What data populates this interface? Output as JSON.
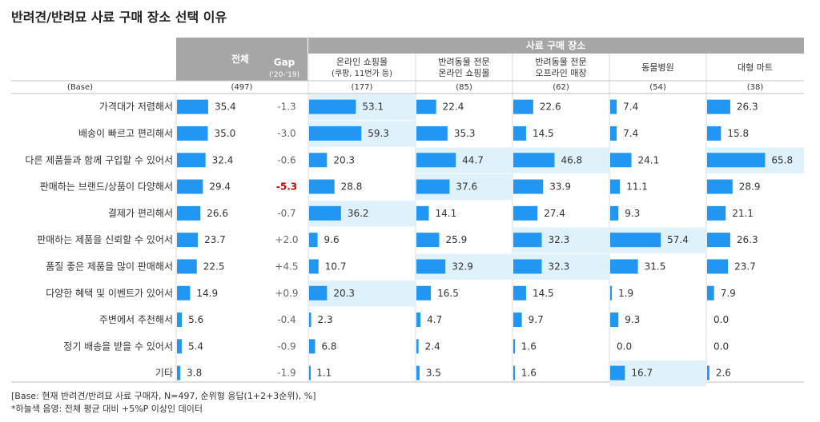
{
  "title": "반려견/반려묘 사료 구매 장소 선택 이유",
  "group_header": "사료 구매 장소",
  "base_label": "(Base)",
  "total_header": "전체",
  "gap_header": "Gap",
  "gap_sub": "('20-'19)",
  "columns": [
    {
      "name": "온라인 쇼핑몰",
      "sub": "(쿠팡, 11번가 등)",
      "base": "(177)"
    },
    {
      "name": "반려동물 전문",
      "sub": "온라인 쇼핑몰",
      "base": "(85)"
    },
    {
      "name": "반려동물 전문",
      "sub": "오프라인 매장",
      "base": "(62)"
    },
    {
      "name": "동물병원",
      "sub": "",
      "base": "(54)"
    },
    {
      "name": "대형 마트",
      "sub": "",
      "base": "(38)"
    }
  ],
  "total_base": "(497)",
  "notes": [
    "[Base: 현재 반려견/반려묘 사료 구매자, N=497, 순위형 응답(1+2+3순위), %]",
    "*하늘색 음영: 전체 평균 대비 +5%P 이상인 데이터"
  ],
  "colors": {
    "bar": "#2196f3",
    "highlight": "#dff1fb",
    "header_gray": "#a6a6a6",
    "gap_red": "#cc0000"
  },
  "chart_data": {
    "type": "bar",
    "title": "반려견/반려묘 사료 구매 장소 선택 이유",
    "categories": [
      "가격대가 저렴해서",
      "배송이 빠르고 편리해서",
      "다른 제품들과 함께 구입할 수 있어서",
      "판매하는 브랜드/상품이 다양해서",
      "결제가 편리해서",
      "판매하는 제품을 신뢰할 수 있어서",
      "품질 좋은 제품을 많이 판매해서",
      "다양한 혜택 및 이벤트가 있어서",
      "주변에서 추천해서",
      "정기 배송을 받을 수 있어서",
      "기타"
    ],
    "total": {
      "name": "전체",
      "values": [
        35.4,
        35.0,
        32.4,
        29.4,
        26.6,
        23.7,
        22.5,
        14.9,
        5.6,
        5.4,
        3.8
      ]
    },
    "gap": {
      "name": "Gap ('20-'19)",
      "values": [
        "-1.3",
        "-3.0",
        "-0.6",
        "-5.3",
        "-0.7",
        "+2.0",
        "+4.5",
        "+0.9",
        "-0.4",
        "-0.9",
        "-1.9"
      ],
      "emphasis_index": 3
    },
    "series": [
      {
        "name": "온라인 쇼핑몰",
        "values": [
          53.1,
          59.3,
          20.3,
          28.8,
          36.2,
          9.6,
          10.7,
          20.3,
          2.3,
          6.8,
          1.1
        ],
        "highlight": [
          true,
          true,
          false,
          false,
          true,
          false,
          false,
          true,
          false,
          false,
          false
        ]
      },
      {
        "name": "반려동물 전문 온라인 쇼핑몰",
        "values": [
          22.4,
          35.3,
          44.7,
          37.6,
          14.1,
          25.9,
          32.9,
          16.5,
          4.7,
          2.4,
          3.5
        ],
        "highlight": [
          false,
          false,
          true,
          true,
          false,
          false,
          true,
          false,
          false,
          false,
          false
        ]
      },
      {
        "name": "반려동물 전문 오프라인 매장",
        "values": [
          22.6,
          14.5,
          46.8,
          33.9,
          27.4,
          32.3,
          32.3,
          14.5,
          9.7,
          1.6,
          1.6
        ],
        "highlight": [
          false,
          false,
          true,
          false,
          false,
          true,
          true,
          false,
          false,
          false,
          false
        ]
      },
      {
        "name": "동물병원",
        "values": [
          7.4,
          7.4,
          24.1,
          11.1,
          9.3,
          57.4,
          31.5,
          1.9,
          9.3,
          0.0,
          16.7
        ],
        "highlight": [
          false,
          false,
          false,
          false,
          false,
          true,
          false,
          false,
          false,
          false,
          true
        ]
      },
      {
        "name": "대형 마트",
        "values": [
          26.3,
          15.8,
          65.8,
          28.9,
          21.1,
          26.3,
          23.7,
          7.9,
          0.0,
          0.0,
          2.6
        ],
        "highlight": [
          false,
          false,
          true,
          false,
          false,
          false,
          false,
          false,
          false,
          false,
          false
        ]
      }
    ],
    "ylim": [
      0,
      100
    ]
  }
}
